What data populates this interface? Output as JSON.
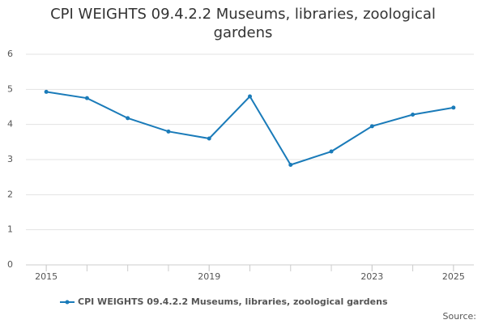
{
  "chart_data": {
    "type": "line",
    "title": "CPI WEIGHTS 09.4.2.2 Museums, libraries, zoological gardens",
    "x": [
      2015,
      2016,
      2017,
      2018,
      2019,
      2020,
      2021,
      2022,
      2023,
      2024,
      2025
    ],
    "series": [
      {
        "name": "CPI WEIGHTS 09.4.2.2 Museums, libraries, zoological gardens",
        "color": "#1a7bb9",
        "values": [
          4.93,
          4.75,
          4.18,
          3.8,
          3.6,
          4.8,
          2.85,
          3.23,
          3.95,
          4.28,
          4.48
        ]
      }
    ],
    "xlim": [
      2014.5,
      2025.5
    ],
    "xticks": [
      2015,
      2019,
      2023,
      2025
    ],
    "ylim": [
      0,
      6
    ],
    "yticks": [
      0,
      1,
      2,
      3,
      4,
      5,
      6
    ],
    "grid": true,
    "source_label": "Source:"
  }
}
